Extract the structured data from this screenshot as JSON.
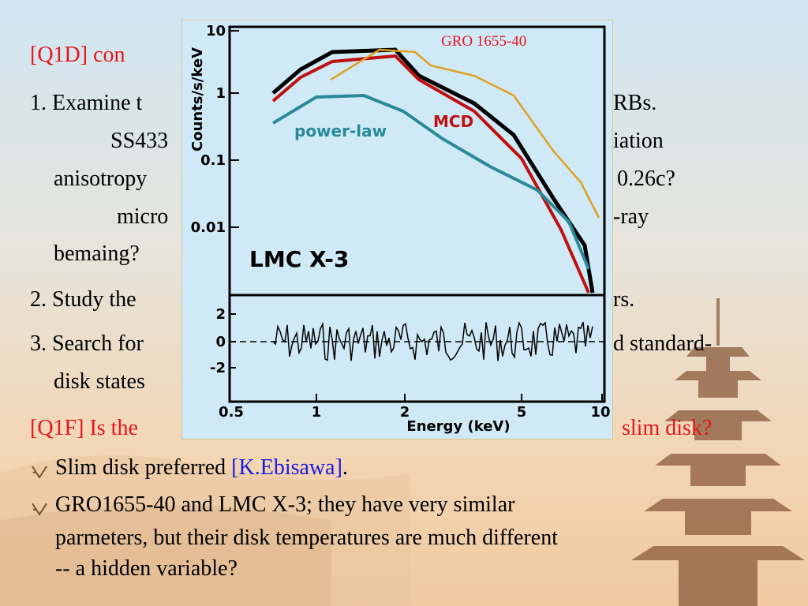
{
  "slide": {
    "title": "[Q1D] con",
    "lines": [
      {
        "left": "1. Examine t",
        "right": "RBs."
      },
      {
        "left": "SS433",
        "right": "iation"
      },
      {
        "left": "anisotropy",
        "right": "0.26c?"
      },
      {
        "left": "micro",
        "right": "-ray"
      },
      {
        "left": "bemaing?"
      },
      {
        "left": "2. Study the",
        "right": "rs."
      },
      {
        "left": "3. Search for",
        "right": "d standard-"
      },
      {
        "left": "disk states"
      },
      {
        "left": "[Q1F] Is the",
        "right": "slim disk?"
      }
    ],
    "bullets": [
      [
        "Slim disk preferred ",
        "[K.Ebisawa]",
        "."
      ],
      [
        "GRO1655-40 and LMC X-3; they have very similar",
        "parmeters, but their disk temperatures are much different",
        "-- a hidden variable?"
      ]
    ]
  },
  "figure": {
    "y_label": "Counts/s/keV",
    "x_label": "Energy (keV)",
    "y_ticks_upper": [
      "10",
      "1",
      "0.1",
      "0.01"
    ],
    "y_ticks_lower": [
      "2",
      "0",
      "-2"
    ],
    "x_ticks": [
      "0.5",
      "1",
      "2",
      "5",
      "10"
    ],
    "labels": {
      "power_law": "power-law",
      "mcd": "MCD",
      "source": "LMC X-3",
      "overlay": "GRO 1655-40"
    }
  }
}
